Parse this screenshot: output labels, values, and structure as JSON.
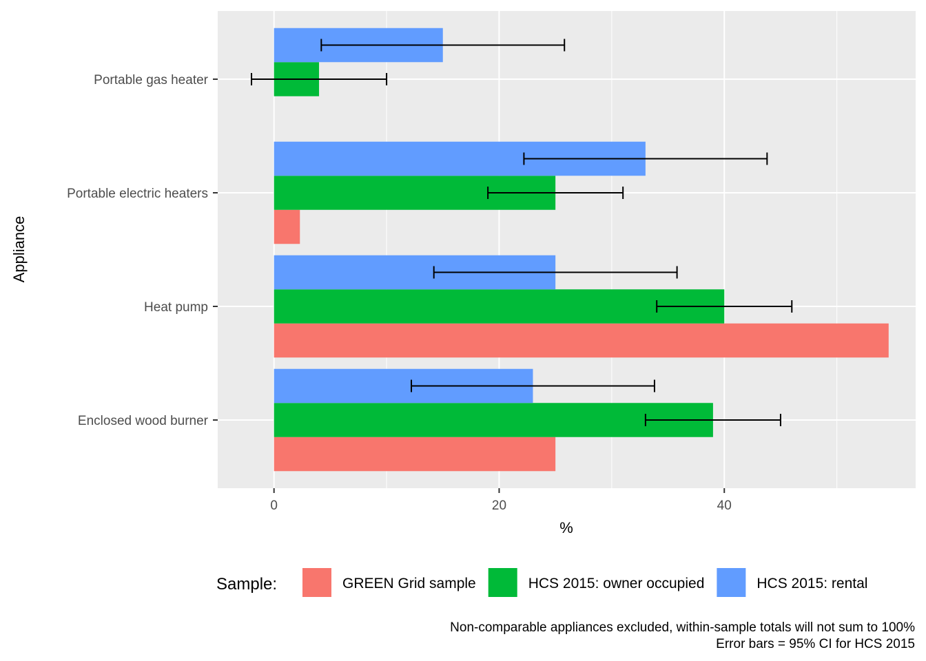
{
  "chart_data": {
    "type": "bar",
    "orientation": "horizontal",
    "categories": [
      "Enclosed wood burner",
      "Heat pump",
      "Portable electric heaters",
      "Portable gas heater"
    ],
    "series": [
      {
        "name": "GREEN Grid sample",
        "color": "#F8766D",
        "values": [
          25,
          54.6,
          2.3,
          null
        ],
        "error_low": null,
        "error_high": null
      },
      {
        "name": "HCS 2015: owner occupied",
        "color": "#00BA38",
        "values": [
          39,
          40,
          25,
          4
        ],
        "error_low": [
          33,
          34,
          19,
          -2
        ],
        "error_high": [
          45,
          46,
          31,
          10
        ]
      },
      {
        "name": "HCS 2015: rental",
        "color": "#619CFF",
        "values": [
          23,
          25,
          33,
          15
        ],
        "error_low": [
          12.2,
          14.2,
          22.2,
          4.2
        ],
        "error_high": [
          33.8,
          35.8,
          43.8,
          25.8
        ]
      }
    ],
    "x_ticks": [
      0,
      20,
      40
    ],
    "xlim": [
      -5,
      57
    ],
    "xlabel": "%",
    "ylabel": "Appliance",
    "legend": {
      "title": "Sample:",
      "position": "bottom"
    },
    "caption": [
      "Non-comparable appliances excluded, within-sample totals will not sum to 100%",
      "Error bars = 95% CI for HCS 2015"
    ],
    "grid": true,
    "panel_background": "#EBEBEB"
  }
}
